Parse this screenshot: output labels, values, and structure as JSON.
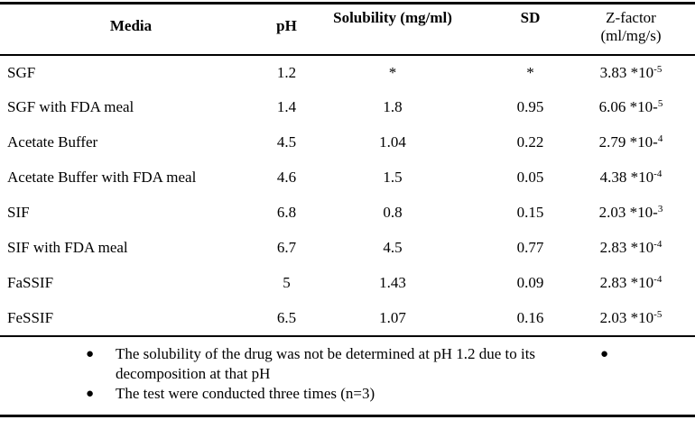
{
  "table": {
    "headers": {
      "media": "Media",
      "ph": "pH",
      "solubility": "Solubility (mg/ml)",
      "sd": "SD",
      "zfactor_line1": "Z-factor",
      "zfactor_line2": "(ml/mg/s)"
    },
    "rows": [
      {
        "media": "SGF",
        "ph": "1.2",
        "solubility": "*",
        "sd": "*",
        "z_base": "3.83 *10",
        "z_sup": "-5"
      },
      {
        "media": "SGF with FDA meal",
        "ph": "1.4",
        "solubility": "1.8",
        "sd": "0.95",
        "z_base": "6.06 *10-",
        "z_sup": "5"
      },
      {
        "media": "Acetate Buffer",
        "ph": "4.5",
        "solubility": "1.04",
        "sd": "0.22",
        "z_base": "2.79 *10-",
        "z_sup": "4"
      },
      {
        "media": "Acetate Buffer with FDA meal",
        "ph": "4.6",
        "solubility": "1.5",
        "sd": "0.05",
        "z_base": "4.38 *10",
        "z_sup": "-4"
      },
      {
        "media": "SIF",
        "ph": "6.8",
        "solubility": "0.8",
        "sd": "0.15",
        "z_base": "2.03 *10-",
        "z_sup": "3"
      },
      {
        "media": "SIF with FDA meal",
        "ph": "6.7",
        "solubility": "4.5",
        "sd": "0.77",
        "z_base": "2.83 *10",
        "z_sup": "-4"
      },
      {
        "media": "FaSSIF",
        "ph": "5",
        "solubility": "1.43",
        "sd": "0.09",
        "z_base": "2.83 *10",
        "z_sup": "-4"
      },
      {
        "media": "FeSSIF",
        "ph": "6.5",
        "solubility": "1.07",
        "sd": "0.16",
        "z_base": "2.03 *10",
        "z_sup": "-5"
      }
    ]
  },
  "footnotes": {
    "bullet_glyph": "●",
    "right_bullet": "●",
    "items": [
      "The solubility of the drug was not be determined at pH 1.2 due to its decomposition at that pH",
      "The test were conducted three times (n=3)"
    ]
  },
  "colors": {
    "text": "#000000",
    "background": "#ffffff",
    "rule": "#000000"
  },
  "chart_data": {
    "type": "table",
    "columns": [
      "Media",
      "pH",
      "Solubility (mg/ml)",
      "SD",
      "Z-factor (ml/mg/s)"
    ],
    "rows": [
      [
        "SGF",
        "1.2",
        "*",
        "*",
        "3.83 *10^-5"
      ],
      [
        "SGF with FDA meal",
        "1.4",
        "1.8",
        "0.95",
        "6.06 *10^-5"
      ],
      [
        "Acetate Buffer",
        "4.5",
        "1.04",
        "0.22",
        "2.79 *10^-4"
      ],
      [
        "Acetate Buffer with FDA meal",
        "4.6",
        "1.5",
        "0.05",
        "4.38 *10^-4"
      ],
      [
        "SIF",
        "6.8",
        "0.8",
        "0.15",
        "2.03 *10^-3"
      ],
      [
        "SIF with FDA meal",
        "6.7",
        "4.5",
        "0.77",
        "2.83 *10^-4"
      ],
      [
        "FaSSIF",
        "5",
        "1.43",
        "0.09",
        "2.83 *10^-4"
      ],
      [
        "FeSSIF",
        "6.5",
        "1.07",
        "0.16",
        "2.03 *10^-5"
      ]
    ]
  }
}
